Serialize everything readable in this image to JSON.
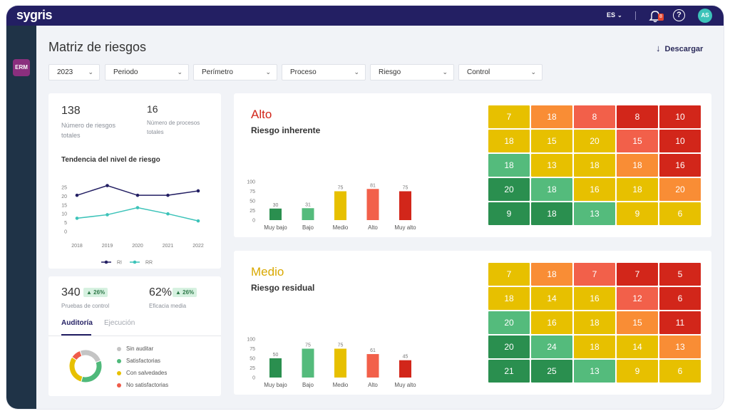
{
  "app": {
    "logo": "sygris",
    "language": "ES",
    "notifications": "8",
    "help": "?",
    "avatar": "AS",
    "module": "ERM"
  },
  "page": {
    "title": "Matriz de riesgos",
    "download_label": "Descargar"
  },
  "filters": [
    {
      "label": "2023"
    },
    {
      "label": "Periodo"
    },
    {
      "label": "Perímetro"
    },
    {
      "label": "Proceso"
    },
    {
      "label": "Riesgo"
    },
    {
      "label": "Control"
    }
  ],
  "summary": {
    "total_risks": {
      "value": "138",
      "label": "Número de riesgos totales"
    },
    "total_processes": {
      "value": "16",
      "label": "Número de procesos totales"
    },
    "trend_title": "Tendencia del nivel de riesgo"
  },
  "controls": {
    "tests": {
      "value": "340",
      "change": "26%",
      "label": "Pruebas de control"
    },
    "efficacy": {
      "value": "62%",
      "change": "26%",
      "label": "Eficacia media"
    },
    "tabs": [
      {
        "label": "Auditoría",
        "active": true
      },
      {
        "label": "Ejecución",
        "active": false
      }
    ],
    "legend": [
      {
        "label": "Sin auditar",
        "color": "#c4c4c4"
      },
      {
        "label": "Satisfactorias",
        "color": "#4fb97a"
      },
      {
        "label": "Con salvedades",
        "color": "#e7c000"
      },
      {
        "label": "No satisfactorias",
        "color": "#ef5b4a"
      }
    ]
  },
  "panels": [
    {
      "level": "Alto",
      "level_color": "#d2261a",
      "subtitle": "Riesgo inherente",
      "heatmap": [
        [
          7,
          18,
          8,
          8,
          10
        ],
        [
          18,
          15,
          20,
          15,
          10
        ],
        [
          18,
          13,
          18,
          18,
          16
        ],
        [
          20,
          18,
          16,
          18,
          20
        ],
        [
          9,
          18,
          13,
          9,
          6
        ]
      ]
    },
    {
      "level": "Medio",
      "level_color": "#d9a800",
      "subtitle": "Riesgo residual",
      "heatmap": [
        [
          7,
          18,
          7,
          7,
          5
        ],
        [
          18,
          14,
          16,
          12,
          6
        ],
        [
          20,
          16,
          18,
          15,
          11
        ],
        [
          20,
          24,
          18,
          14,
          13
        ],
        [
          21,
          25,
          13,
          9,
          6
        ]
      ]
    }
  ],
  "heat_colors": [
    [
      "#e7c000",
      "#f98d35",
      "#f2604a",
      "#d2261a",
      "#d2261a"
    ],
    [
      "#e7c000",
      "#e7c000",
      "#e7c000",
      "#f2604a",
      "#d2261a"
    ],
    [
      "#54bb7c",
      "#e7c000",
      "#e7c000",
      "#f98d35",
      "#d2261a"
    ],
    [
      "#2a8f4f",
      "#54bb7c",
      "#e7c000",
      "#e7c000",
      "#f98d35"
    ],
    [
      "#2a8f4f",
      "#2a8f4f",
      "#54bb7c",
      "#e7c000",
      "#e7c000"
    ]
  ],
  "chart_data": [
    {
      "type": "line",
      "title": "Tendencia del nivel de riesgo",
      "x": [
        "2018",
        "2019",
        "2020",
        "2021",
        "2022"
      ],
      "ylim": [
        0,
        25
      ],
      "yticks": [
        0,
        5,
        10,
        15,
        20,
        25
      ],
      "series": [
        {
          "name": "RI",
          "color": "#231f63",
          "values": [
            20.5,
            26,
            20.5,
            20.5,
            23
          ]
        },
        {
          "name": "RR",
          "color": "#3cc3b9",
          "values": [
            7.5,
            9.5,
            13.5,
            10,
            6
          ]
        }
      ],
      "legend": "bottom",
      "grid": false
    },
    {
      "type": "bar",
      "categories": [
        "Muy bajo",
        "Bajo",
        "Medio",
        "Alto",
        "Muy alto"
      ],
      "values": [
        30,
        31,
        75,
        81,
        75
      ],
      "ylim": [
        0,
        100
      ],
      "yticks": [
        0,
        25,
        50,
        75,
        100
      ],
      "colors": [
        "#2a8f4f",
        "#54bb7c",
        "#e7c000",
        "#f2604a",
        "#d2261a"
      ]
    },
    {
      "type": "bar",
      "categories": [
        "Muy bajo",
        "Bajo",
        "Medio",
        "Alto",
        "Muy alto"
      ],
      "values": [
        50,
        75,
        75,
        61,
        45
      ],
      "ylim": [
        0,
        100
      ],
      "yticks": [
        0,
        25,
        50,
        75,
        100
      ],
      "colors": [
        "#2a8f4f",
        "#54bb7c",
        "#e7c000",
        "#f2604a",
        "#d2261a"
      ]
    },
    {
      "type": "pie",
      "donut": true,
      "labels": [
        "Sin auditar",
        "Satisfactorias",
        "Con salvedades",
        "No satisfactorias"
      ],
      "values": [
        25,
        35,
        30,
        10
      ],
      "colors": [
        "#c4c4c4",
        "#4fb97a",
        "#e7c000",
        "#ef5b4a"
      ]
    }
  ]
}
